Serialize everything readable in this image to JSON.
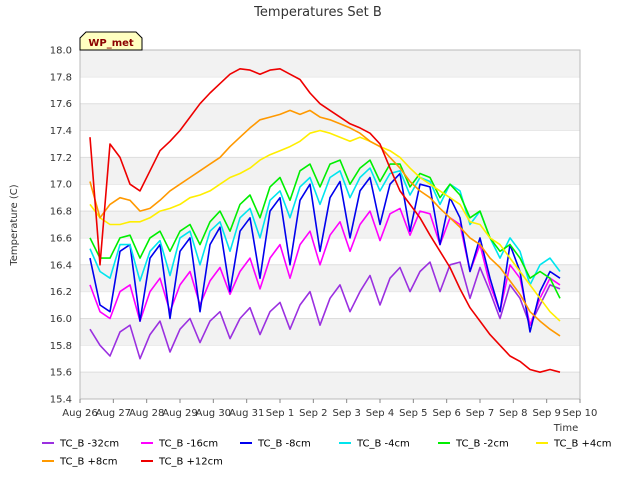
{
  "chart_data": {
    "type": "line",
    "title": "Temperatures Set B",
    "xlabel": "Time",
    "ylabel": "Temperature (C)",
    "badge": "WP_met",
    "ylim": [
      15.4,
      18.0
    ],
    "yticks": [
      "15.4",
      "15.6",
      "15.8",
      "16.0",
      "16.2",
      "16.4",
      "16.6",
      "16.8",
      "17.0",
      "17.2",
      "17.4",
      "17.6",
      "17.8",
      "18.0"
    ],
    "xlim": [
      0,
      15
    ],
    "xticks": [
      "Aug 26",
      "Aug 27",
      "Aug 28",
      "Aug 29",
      "Aug 30",
      "Aug 31",
      "Sep 1",
      "Sep 2",
      "Sep 3",
      "Sep 4",
      "Sep 5",
      "Sep 6",
      "Sep 7",
      "Sep 8",
      "Sep 9",
      "Sep 10"
    ],
    "x_day_index": [
      0.3,
      0.6,
      0.9,
      1.2,
      1.5,
      1.8,
      2.1,
      2.4,
      2.7,
      3.0,
      3.3,
      3.6,
      3.9,
      4.2,
      4.5,
      4.8,
      5.1,
      5.4,
      5.7,
      6.0,
      6.3,
      6.6,
      6.9,
      7.2,
      7.5,
      7.8,
      8.1,
      8.4,
      8.7,
      9.0,
      9.3,
      9.6,
      9.9,
      10.2,
      10.5,
      10.8,
      11.1,
      11.4,
      11.7,
      12.0,
      12.3,
      12.6,
      12.9,
      13.2,
      13.5,
      13.8,
      14.1,
      14.4
    ],
    "grid": "horizontal bands",
    "legend": "bottom",
    "series": [
      {
        "name": "TC_B -32cm",
        "color": "#9b30e0",
        "values": [
          15.92,
          15.8,
          15.72,
          15.9,
          15.95,
          15.7,
          15.88,
          15.98,
          15.75,
          15.92,
          16.0,
          15.82,
          15.98,
          16.05,
          15.85,
          16.0,
          16.08,
          15.88,
          16.05,
          16.12,
          15.92,
          16.1,
          16.2,
          15.95,
          16.15,
          16.25,
          16.05,
          16.2,
          16.32,
          16.1,
          16.3,
          16.38,
          16.2,
          16.35,
          16.42,
          16.2,
          16.4,
          16.42,
          16.15,
          16.38,
          16.2,
          16.0,
          16.25,
          16.15,
          15.95,
          16.1,
          16.25,
          16.22
        ]
      },
      {
        "name": "TC_B -16cm",
        "color": "#ff00ff",
        "values": [
          16.25,
          16.05,
          16.0,
          16.2,
          16.25,
          15.98,
          16.2,
          16.3,
          16.05,
          16.25,
          16.35,
          16.1,
          16.28,
          16.38,
          16.18,
          16.35,
          16.45,
          16.22,
          16.45,
          16.55,
          16.3,
          16.55,
          16.65,
          16.4,
          16.62,
          16.72,
          16.5,
          16.7,
          16.8,
          16.58,
          16.78,
          16.82,
          16.62,
          16.8,
          16.78,
          16.55,
          16.75,
          16.7,
          16.35,
          16.55,
          16.25,
          16.05,
          16.4,
          16.3,
          15.95,
          16.15,
          16.3,
          16.25
        ]
      },
      {
        "name": "TC_B -8cm",
        "color": "#0000ee",
        "values": [
          16.45,
          16.1,
          16.05,
          16.5,
          16.55,
          15.98,
          16.45,
          16.55,
          16.0,
          16.5,
          16.6,
          16.05,
          16.55,
          16.68,
          16.2,
          16.65,
          16.75,
          16.3,
          16.8,
          16.9,
          16.4,
          16.88,
          17.0,
          16.5,
          16.9,
          17.02,
          16.6,
          16.95,
          17.05,
          16.7,
          17.0,
          17.08,
          16.65,
          17.0,
          16.98,
          16.55,
          16.9,
          16.75,
          16.35,
          16.6,
          16.3,
          16.05,
          16.55,
          16.35,
          15.9,
          16.2,
          16.35,
          16.3
        ]
      },
      {
        "name": "TC_B -4cm",
        "color": "#00e5ee",
        "values": [
          16.52,
          16.35,
          16.3,
          16.55,
          16.55,
          16.28,
          16.5,
          16.58,
          16.32,
          16.6,
          16.65,
          16.4,
          16.65,
          16.72,
          16.5,
          16.75,
          16.82,
          16.6,
          16.88,
          16.95,
          16.75,
          16.98,
          17.05,
          16.85,
          17.05,
          17.1,
          16.9,
          17.05,
          17.12,
          16.95,
          17.08,
          17.1,
          16.92,
          17.05,
          17.02,
          16.85,
          17.0,
          16.95,
          16.7,
          16.8,
          16.6,
          16.45,
          16.6,
          16.5,
          16.25,
          16.4,
          16.45,
          16.35
        ]
      },
      {
        "name": "TC_B -2cm",
        "color": "#00ee00",
        "values": [
          16.6,
          16.45,
          16.45,
          16.6,
          16.62,
          16.45,
          16.6,
          16.65,
          16.5,
          16.65,
          16.7,
          16.55,
          16.72,
          16.8,
          16.65,
          16.85,
          16.92,
          16.75,
          16.98,
          17.05,
          16.88,
          17.1,
          17.15,
          16.98,
          17.15,
          17.18,
          17.0,
          17.12,
          17.18,
          17.02,
          17.15,
          17.15,
          16.98,
          17.08,
          17.05,
          16.9,
          17.0,
          16.92,
          16.75,
          16.8,
          16.6,
          16.5,
          16.55,
          16.45,
          16.3,
          16.35,
          16.3,
          16.15
        ]
      },
      {
        "name": "TC_B +4cm",
        "color": "#ffee00",
        "values": [
          16.85,
          16.75,
          16.7,
          16.7,
          16.72,
          16.72,
          16.75,
          16.8,
          16.82,
          16.85,
          16.9,
          16.92,
          16.95,
          17.0,
          17.05,
          17.08,
          17.12,
          17.18,
          17.22,
          17.25,
          17.28,
          17.32,
          17.38,
          17.4,
          17.38,
          17.35,
          17.32,
          17.35,
          17.32,
          17.28,
          17.25,
          17.2,
          17.12,
          17.05,
          17.0,
          16.95,
          16.9,
          16.85,
          16.72,
          16.7,
          16.6,
          16.55,
          16.45,
          16.35,
          16.25,
          16.15,
          16.05,
          15.98
        ]
      },
      {
        "name": "TC_B +8cm",
        "color": "#ff9900",
        "values": [
          17.02,
          16.75,
          16.85,
          16.9,
          16.88,
          16.8,
          16.82,
          16.88,
          16.95,
          17.0,
          17.05,
          17.1,
          17.15,
          17.2,
          17.28,
          17.35,
          17.42,
          17.48,
          17.5,
          17.52,
          17.55,
          17.52,
          17.55,
          17.5,
          17.48,
          17.45,
          17.42,
          17.38,
          17.32,
          17.28,
          17.2,
          17.12,
          17.02,
          16.95,
          16.9,
          16.82,
          16.75,
          16.68,
          16.6,
          16.55,
          16.45,
          16.38,
          16.28,
          16.18,
          16.05,
          15.98,
          15.92,
          15.87
        ]
      },
      {
        "name": "TC_B +12cm",
        "color": "#ee0000",
        "values": [
          17.35,
          16.4,
          17.3,
          17.2,
          17.0,
          16.95,
          17.1,
          17.25,
          17.32,
          17.4,
          17.5,
          17.6,
          17.68,
          17.75,
          17.82,
          17.86,
          17.85,
          17.82,
          17.85,
          17.86,
          17.82,
          17.78,
          17.68,
          17.6,
          17.55,
          17.5,
          17.45,
          17.42,
          17.38,
          17.3,
          17.12,
          16.95,
          16.85,
          16.75,
          16.62,
          16.5,
          16.38,
          16.22,
          16.08,
          15.98,
          15.88,
          15.8,
          15.72,
          15.68,
          15.62,
          15.6,
          15.62,
          15.6
        ]
      }
    ]
  }
}
